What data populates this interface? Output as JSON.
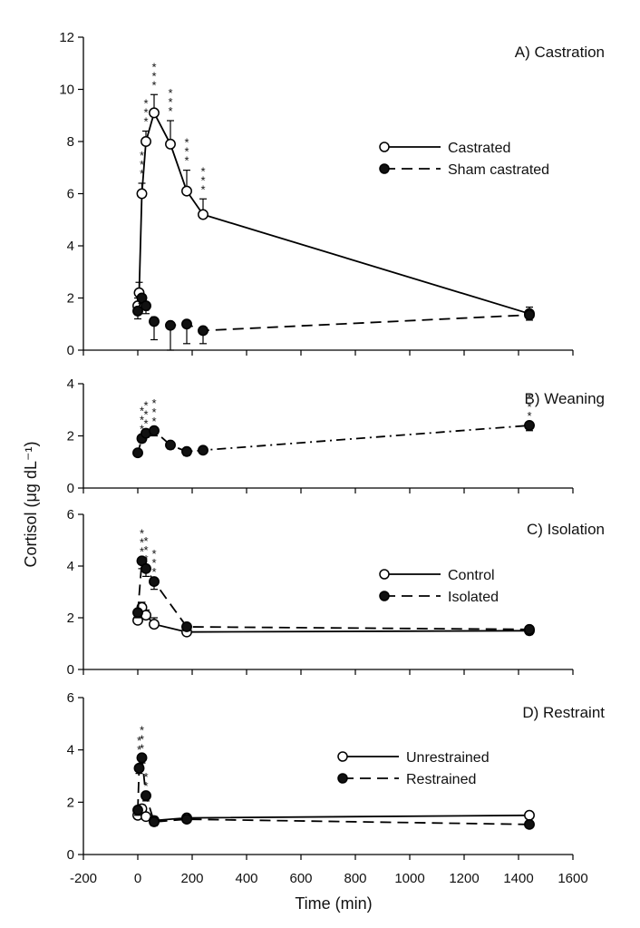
{
  "chart_data": {
    "type": "line",
    "ylabel": "Cortisol (μg dL⁻¹)",
    "xlabel": "Time (min)",
    "xlim": [
      -200,
      1600
    ],
    "xticks": [
      -200,
      0,
      200,
      400,
      600,
      800,
      1000,
      1200,
      1400,
      1600
    ],
    "panels": [
      {
        "id": "A",
        "title": "A) Castration",
        "ylim": [
          0,
          12
        ],
        "yticks": [
          0,
          2,
          4,
          6,
          8,
          10,
          12
        ],
        "legend_position": "right",
        "series": [
          {
            "name": "Castrated",
            "marker": "open",
            "line": "solid",
            "points": [
              {
                "x": 0,
                "y": 1.7,
                "err": 0.3
              },
              {
                "x": 5,
                "y": 2.2,
                "err": 0.4
              },
              {
                "x": 15,
                "y": 6.0,
                "err": 0.4,
                "stars": 3
              },
              {
                "x": 30,
                "y": 8.0,
                "err": 0.4,
                "stars": 3
              },
              {
                "x": 60,
                "y": 9.1,
                "err": 0.7,
                "stars": 3
              },
              {
                "x": 120,
                "y": 7.9,
                "err": 0.9,
                "stars": 3
              },
              {
                "x": 180,
                "y": 6.1,
                "err": 0.8,
                "stars": 3
              },
              {
                "x": 240,
                "y": 5.2,
                "err": 0.6,
                "stars": 3
              },
              {
                "x": 1440,
                "y": 1.4,
                "err": 0.25
              }
            ]
          },
          {
            "name": "Sham castrated",
            "marker": "filled",
            "line": "dashed",
            "points": [
              {
                "x": 0,
                "y": 1.5,
                "err": 0.3
              },
              {
                "x": 15,
                "y": 2.0,
                "err": 0.2
              },
              {
                "x": 30,
                "y": 1.7,
                "err": 0.3
              },
              {
                "x": 60,
                "y": 1.1,
                "err": 0.7
              },
              {
                "x": 120,
                "y": 0.95,
                "err": 0.95
              },
              {
                "x": 180,
                "y": 1.0,
                "err": 0.75
              },
              {
                "x": 240,
                "y": 0.75,
                "err": 0.5
              },
              {
                "x": 1440,
                "y": 1.35,
                "err": 0.2
              }
            ]
          }
        ]
      },
      {
        "id": "B",
        "title": "B) Weaning",
        "ylim": [
          0,
          4
        ],
        "yticks": [
          0,
          2,
          4
        ],
        "series": [
          {
            "marker": "filled",
            "line": "dashdot",
            "points": [
              {
                "x": 0,
                "y": 1.35,
                "err": 0
              },
              {
                "x": 15,
                "y": 1.9,
                "err": 0.15,
                "stars": 3
              },
              {
                "x": 30,
                "y": 2.1,
                "err": 0.15,
                "stars": 3
              },
              {
                "x": 60,
                "y": 2.2,
                "err": 0.2,
                "stars": 3
              },
              {
                "x": 120,
                "y": 1.65,
                "err": 0.15
              },
              {
                "x": 180,
                "y": 1.4,
                "err": 0.15
              },
              {
                "x": 240,
                "y": 1.45,
                "err": 0.05
              },
              {
                "x": 1440,
                "y": 2.4,
                "err": 0.2,
                "stars": 3
              }
            ]
          }
        ]
      },
      {
        "id": "C",
        "title": "C) Isolation",
        "ylim": [
          0,
          6
        ],
        "yticks": [
          0,
          2,
          4,
          6
        ],
        "legend_position": "right",
        "series": [
          {
            "name": "Control",
            "marker": "open",
            "line": "solid",
            "points": [
              {
                "x": 0,
                "y": 1.9,
                "err": 0.3
              },
              {
                "x": 15,
                "y": 2.4,
                "err": 0.2
              },
              {
                "x": 30,
                "y": 2.1,
                "err": 0.2
              },
              {
                "x": 60,
                "y": 1.75,
                "err": 0.25
              },
              {
                "x": 180,
                "y": 1.45,
                "err": 0.25
              },
              {
                "x": 1440,
                "y": 1.5,
                "err": 0.15
              }
            ]
          },
          {
            "name": "Isolated",
            "marker": "filled",
            "line": "dashed",
            "points": [
              {
                "x": 0,
                "y": 2.2,
                "err": 0.2
              },
              {
                "x": 15,
                "y": 4.2,
                "err": 0.3,
                "stars": 3
              },
              {
                "x": 30,
                "y": 3.9,
                "err": 0.3,
                "stars": 3
              },
              {
                "x": 60,
                "y": 3.4,
                "err": 0.3,
                "stars": 3
              },
              {
                "x": 180,
                "y": 1.65,
                "err": 0.15
              },
              {
                "x": 1440,
                "y": 1.55,
                "err": 0.2
              }
            ]
          }
        ]
      },
      {
        "id": "D",
        "title": "D) Restraint",
        "ylim": [
          0,
          6
        ],
        "yticks": [
          0,
          2,
          4,
          6
        ],
        "legend_position": "right",
        "series": [
          {
            "name": "Unrestrained",
            "marker": "open",
            "line": "solid",
            "points": [
              {
                "x": 0,
                "y": 1.5,
                "err": 0.2
              },
              {
                "x": 15,
                "y": 1.75,
                "err": 0.15
              },
              {
                "x": 30,
                "y": 1.45,
                "err": 0.1
              },
              {
                "x": 60,
                "y": 1.3,
                "err": 0.15
              },
              {
                "x": 180,
                "y": 1.4,
                "err": 0.1
              },
              {
                "x": 1440,
                "y": 1.5,
                "err": 0.05
              }
            ]
          },
          {
            "name": "Restrained",
            "marker": "filled",
            "line": "dashed",
            "points": [
              {
                "x": 0,
                "y": 1.7,
                "err": 0.2
              },
              {
                "x": 5,
                "y": 3.3,
                "err": 0.2,
                "stars": 3
              },
              {
                "x": 15,
                "y": 3.7,
                "err": 0.2,
                "stars": 3
              },
              {
                "x": 30,
                "y": 2.25,
                "err": 0.2,
                "stars": 2
              },
              {
                "x": 60,
                "y": 1.25,
                "err": 0.15
              },
              {
                "x": 180,
                "y": 1.35,
                "err": 0.1
              },
              {
                "x": 1440,
                "y": 1.15,
                "err": 0.05
              }
            ]
          }
        ]
      }
    ]
  }
}
